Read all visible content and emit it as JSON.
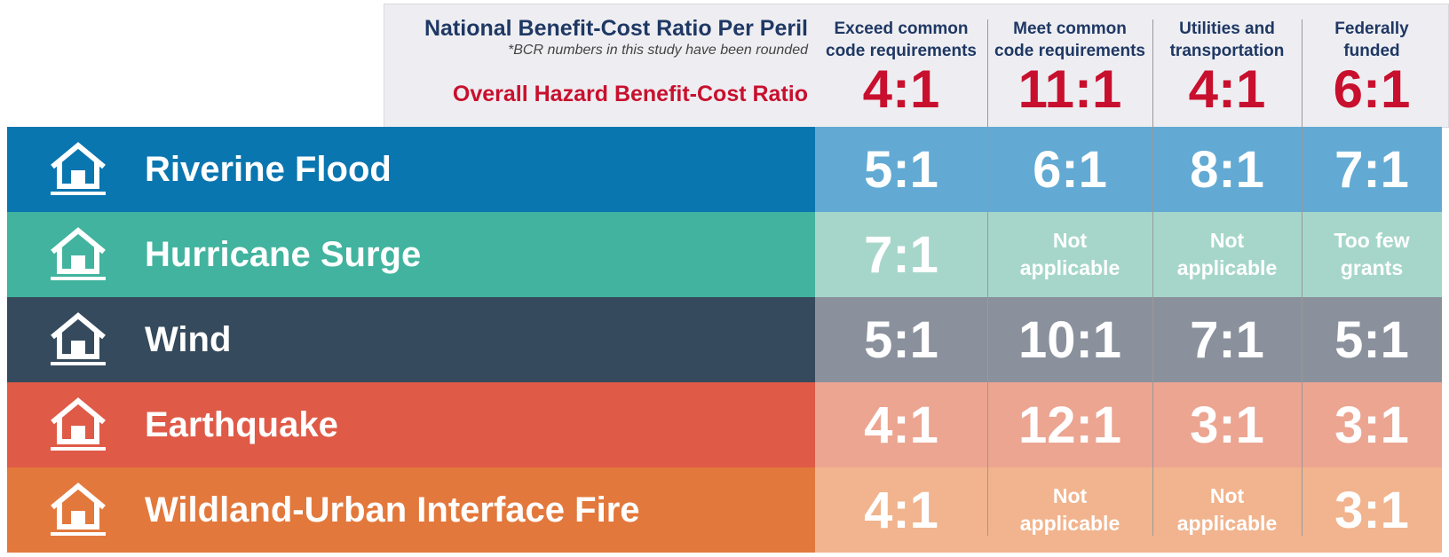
{
  "header": {
    "title": "National Benefit-Cost Ratio Per Peril",
    "note": "*BCR numbers in this study have been rounded",
    "overall_label": "Overall Hazard Benefit-Cost Ratio",
    "columns": [
      {
        "lines": [
          "Exceed common",
          "code requirements"
        ],
        "overall": "4:1"
      },
      {
        "lines": [
          "Meet common",
          "code requirements"
        ],
        "overall": "11:1"
      },
      {
        "lines": [
          "Utilities and",
          "transportation"
        ],
        "overall": "4:1"
      },
      {
        "lines": [
          "Federally",
          "funded"
        ],
        "overall": "6:1"
      }
    ]
  },
  "table": {
    "rows": [
      {
        "name": "Riverine Flood",
        "color": "#0a76b0",
        "cell_color": "#62aad3",
        "cells": [
          "5:1",
          "6:1",
          "8:1",
          "7:1"
        ]
      },
      {
        "name": "Hurricane Surge",
        "color": "#41b39e",
        "cell_color": "#a6d6ca",
        "cells": [
          "7:1",
          "Not applicable",
          "Not applicable",
          "Too few grants"
        ]
      },
      {
        "name": "Wind",
        "color": "#354a5c",
        "cell_color": "#8a919c",
        "cells": [
          "5:1",
          "10:1",
          "7:1",
          "5:1"
        ]
      },
      {
        "name": "Earthquake",
        "color": "#df5a47",
        "cell_color": "#eca591",
        "cells": [
          "4:1",
          "12:1",
          "3:1",
          "3:1"
        ]
      },
      {
        "name": "Wildland-Urban Interface Fire",
        "color": "#e3783c",
        "cell_color": "#f1b48e",
        "cells": [
          "4:1",
          "Not applicable",
          "Not applicable",
          "3:1"
        ]
      }
    ]
  }
}
